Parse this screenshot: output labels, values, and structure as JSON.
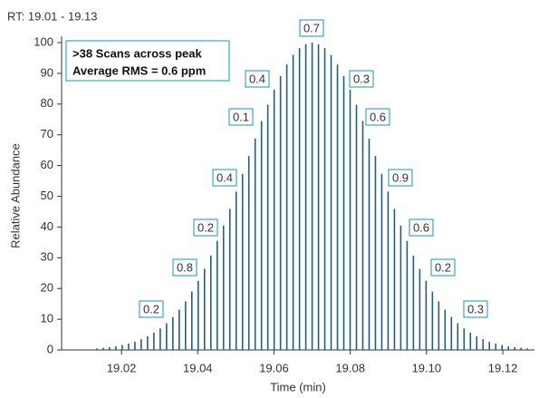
{
  "chart_data": {
    "type": "stem",
    "title": "RT: 19.01 - 19.13",
    "xlabel": "Time (min)",
    "ylabel": "Relative Abundance",
    "info_box": [
      ">38 Scans across peak",
      "Average RMS = 0.6 ppm"
    ],
    "annotations": [
      "0.7",
      "0.4",
      "0.3",
      "0.1",
      "0.6",
      "0.4",
      "0.9",
      "0.2",
      "0.6",
      "0.8",
      "0.2",
      "0.2",
      "0.3"
    ],
    "color": "#1f5f7a",
    "xlim": [
      19.0043,
      19.1283
    ],
    "ylim": [
      0,
      100
    ],
    "xticks": [
      19.02,
      19.04,
      19.06,
      19.08,
      {
        "value": 19.1,
        "label": "19.10"
      },
      19.12
    ],
    "yticks": [
      0,
      10,
      20,
      30,
      40,
      50,
      60,
      70,
      80,
      90,
      100
    ],
    "x": [
      19.01356,
      19.01522,
      19.01688,
      19.01854,
      19.0202,
      19.02186,
      19.02352,
      19.02518,
      19.02684,
      19.0285,
      19.03016,
      19.03182,
      19.03348,
      19.03514,
      19.0368,
      19.03846,
      19.04012,
      19.04178,
      19.04344,
      19.0451,
      19.04676,
      19.04842,
      19.05008,
      19.05174,
      19.0534,
      19.05506,
      19.05672,
      19.05838,
      19.06004,
      19.0617,
      19.06336,
      19.06502,
      19.06668,
      19.06834,
      19.07,
      19.07166,
      19.07332,
      19.07498,
      19.07664,
      19.0783,
      19.07996,
      19.08162,
      19.08328,
      19.08494,
      19.0866,
      19.08826,
      19.08992,
      19.09158,
      19.09324,
      19.0949,
      19.09656,
      19.09822,
      19.09988,
      19.10154,
      19.1032,
      19.10486,
      19.10652,
      19.10818,
      19.10984,
      19.1115,
      19.11316,
      19.11482,
      19.11648,
      19.11814,
      19.1198,
      19.12146,
      19.12312,
      19.12478,
      19.12644
    ],
    "values": [
      0.5,
      0.7,
      0.9,
      1.2,
      1.6,
      2.1,
      2.7,
      3.5,
      4.4,
      5.6,
      7.0,
      8.7,
      10.7,
      13.1,
      15.8,
      19.0,
      22.5,
      26.4,
      30.7,
      35.5,
      40.5,
      45.9,
      51.5,
      57.3,
      63.1,
      68.8,
      74.5,
      79.8,
      84.7,
      89.1,
      92.9,
      96.0,
      98.2,
      99.5,
      100,
      99.5,
      98.2,
      96.0,
      92.9,
      89.1,
      84.7,
      79.8,
      74.5,
      68.8,
      63.1,
      57.3,
      51.5,
      45.9,
      40.5,
      35.5,
      30.7,
      26.4,
      22.5,
      19.0,
      15.8,
      13.1,
      10.7,
      8.7,
      7.0,
      5.6,
      4.4,
      3.5,
      2.7,
      2.1,
      1.6,
      1.2,
      0.9,
      0.7,
      0.5
    ]
  }
}
